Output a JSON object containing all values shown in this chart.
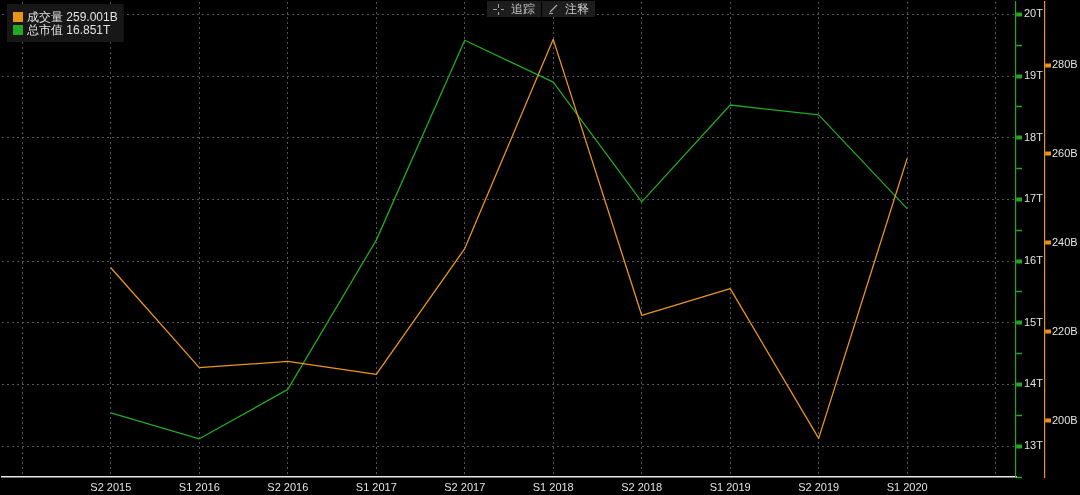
{
  "chart_data": {
    "type": "line",
    "categories": [
      null,
      "S2 2015",
      "S1 2016",
      "S2 2016",
      "S1 2017",
      "S2 2017",
      "S1 2018",
      "S2 2018",
      "S1 2019",
      "S2 2019",
      "S1 2020",
      null
    ],
    "series": [
      {
        "name": "成交量 259.001B",
        "color": "#e8961a",
        "axis": "y2",
        "values": [
          null,
          234.4,
          211.9,
          213.3,
          210.4,
          238.7,
          285.8,
          223.7,
          229.7,
          196.0,
          259.001,
          null
        ]
      },
      {
        "name": "总市值 16.851T",
        "color": "#22a822",
        "values": [
          null,
          13.54,
          13.12,
          13.92,
          16.34,
          19.58,
          18.9,
          16.96,
          18.53,
          18.37,
          16.851,
          null
        ]
      }
    ],
    "ylim": [
      12.5,
      20.2
    ],
    "yticks": [
      {
        "value": 12.5,
        "label": null
      },
      {
        "value": 13,
        "label": "13T"
      },
      {
        "value": 13.5,
        "label": null
      },
      {
        "value": 14,
        "label": "14T"
      },
      {
        "value": 14.5,
        "label": null
      },
      {
        "value": 15,
        "label": "15T"
      },
      {
        "value": 15.5,
        "label": null
      },
      {
        "value": 16,
        "label": "16T"
      },
      {
        "value": 16.5,
        "label": null
      },
      {
        "value": 17,
        "label": "17T"
      },
      {
        "value": 17.5,
        "label": null
      },
      {
        "value": 18,
        "label": "18T"
      },
      {
        "value": 18.5,
        "label": null
      },
      {
        "value": 19,
        "label": "19T"
      },
      {
        "value": 19.5,
        "label": null
      },
      {
        "value": 20,
        "label": "20T"
      }
    ],
    "y2lim": [
      187.3,
      294.2
    ],
    "y2ticks": [
      {
        "value": 200,
        "label": "200B"
      },
      {
        "value": 220,
        "label": "220B"
      },
      {
        "value": 240,
        "label": "240B"
      },
      {
        "value": 260,
        "label": "260B"
      },
      {
        "value": 280,
        "label": "280B"
      }
    ],
    "grid": true,
    "legend": "top left",
    "annotations": [
      "追踪",
      "注释"
    ]
  }
}
